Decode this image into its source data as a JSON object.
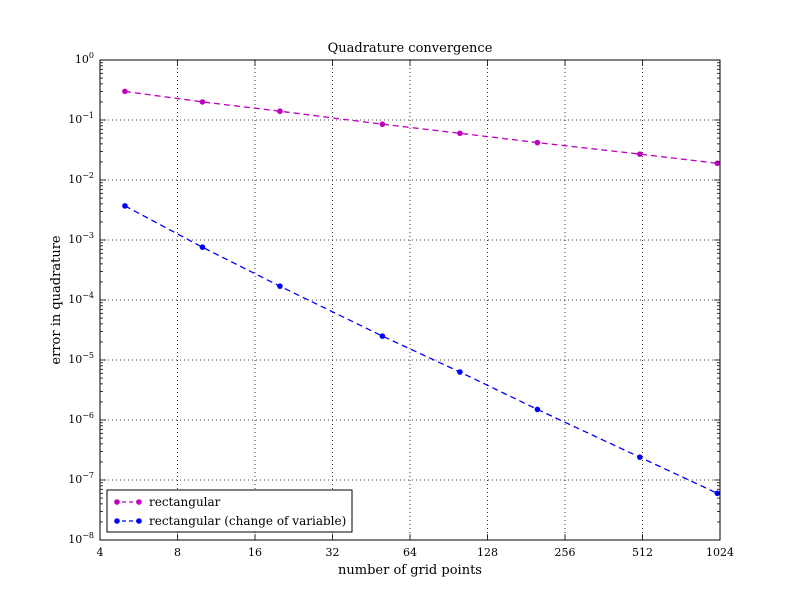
{
  "chart_data": {
    "type": "line",
    "title": "Quadrature convergence",
    "xlabel": "number of grid points",
    "ylabel": "error in quadrature",
    "x_scale": "log2",
    "y_scale": "log10",
    "xlim": [
      4,
      1024
    ],
    "ylim": [
      1e-08,
      1
    ],
    "x_ticks": [
      4,
      8,
      16,
      32,
      64,
      128,
      256,
      512,
      1024
    ],
    "x_tick_labels": [
      "4",
      "8",
      "16",
      "32",
      "64",
      "128",
      "256",
      "512",
      "1024"
    ],
    "y_ticks": [
      1e-08,
      1e-07,
      1e-06,
      1e-05,
      0.0001,
      0.001,
      0.01,
      0.1,
      1
    ],
    "y_tick_labels": [
      {
        "base": "10",
        "exp": "−8"
      },
      {
        "base": "10",
        "exp": "−7"
      },
      {
        "base": "10",
        "exp": "−6"
      },
      {
        "base": "10",
        "exp": "−5"
      },
      {
        "base": "10",
        "exp": "−4"
      },
      {
        "base": "10",
        "exp": "−3"
      },
      {
        "base": "10",
        "exp": "−2"
      },
      {
        "base": "10",
        "exp": "−1"
      },
      {
        "base": "10",
        "exp": "0"
      }
    ],
    "grid": true,
    "legend_position": "lower-left",
    "series": [
      {
        "name": "rectangular",
        "color": "#bf00bf",
        "x": [
          5,
          10,
          20,
          50,
          100,
          200,
          500,
          1000
        ],
        "y": [
          0.3,
          0.2,
          0.14,
          0.085,
          0.06,
          0.042,
          0.027,
          0.019
        ]
      },
      {
        "name": "rectangular (change of variable)",
        "color": "#0000ff",
        "x": [
          5,
          10,
          20,
          50,
          100,
          200,
          500,
          1000
        ],
        "y": [
          0.0037,
          0.00076,
          0.00017,
          2.5e-05,
          6.3e-06,
          1.5e-06,
          2.4e-07,
          6e-08
        ]
      }
    ]
  }
}
